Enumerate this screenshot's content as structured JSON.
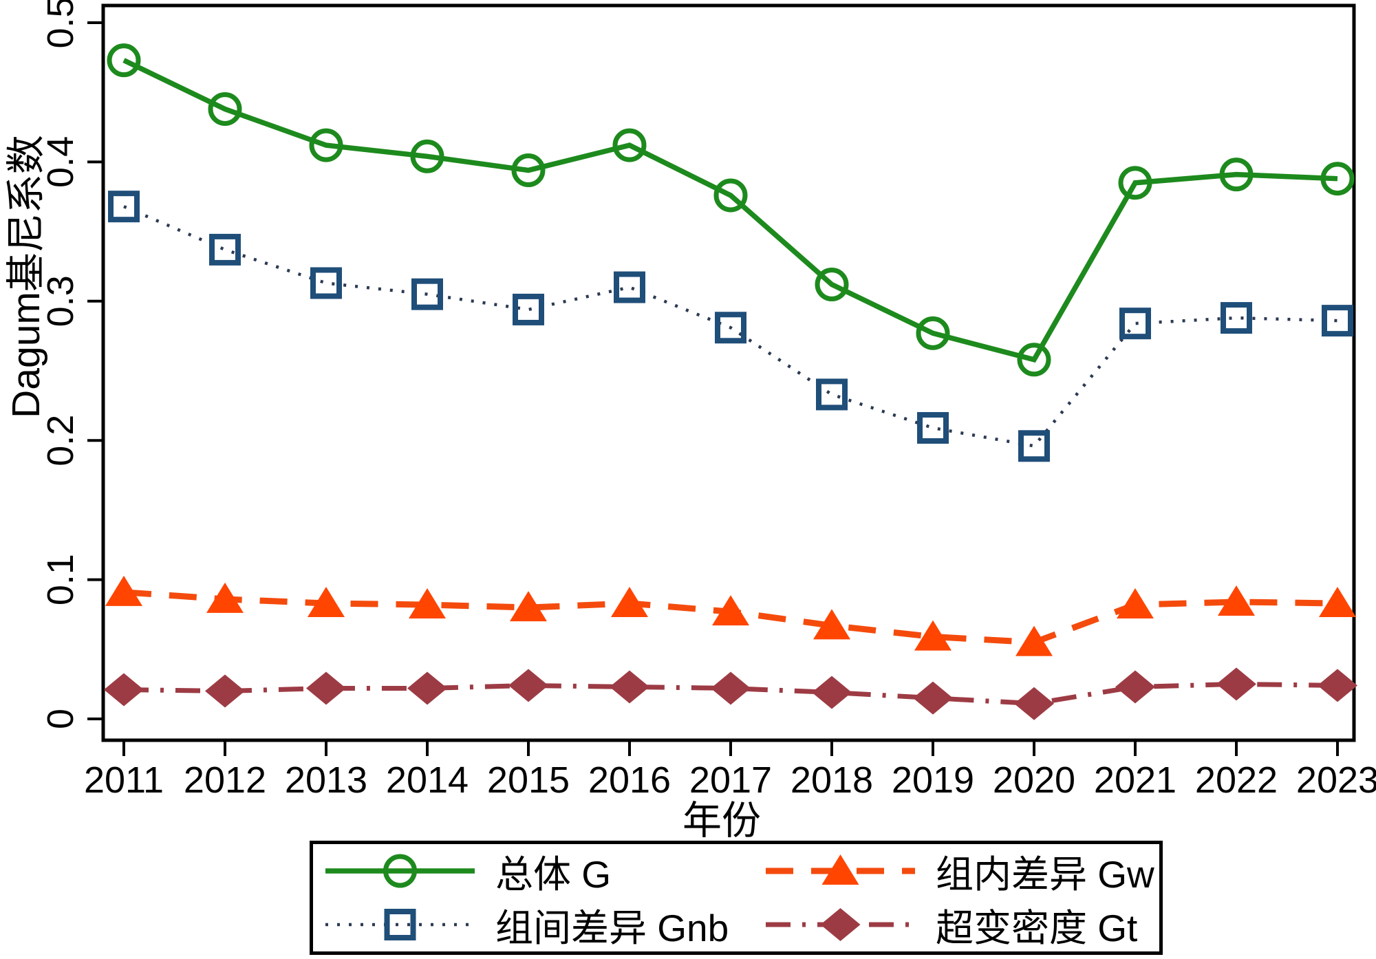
{
  "chart": {
    "y_axis_title": "Dagum基尼系数",
    "x_axis_title": "年份",
    "y_ticks": [
      {
        "value": 0.5,
        "label": "0.5"
      },
      {
        "value": 0.4,
        "label": "0.4"
      },
      {
        "value": 0.3,
        "label": "0.3"
      },
      {
        "value": 0.2,
        "label": "0.2"
      },
      {
        "value": 0.1,
        "label": "0.1"
      },
      {
        "value": 0.0,
        "label": "0"
      }
    ],
    "axis_color": "#000000",
    "background_color": "#ffffff"
  },
  "chart_data": {
    "type": "line",
    "x_labels": [
      "2011",
      "2012",
      "2013",
      "2014",
      "2015",
      "2016",
      "2017",
      "2018",
      "2019",
      "2020",
      "2021",
      "2022",
      "2023"
    ],
    "xlabel": "年份",
    "ylabel": "Dagum基尼系数",
    "ylim": [
      0,
      0.5
    ],
    "grid": false,
    "legend_position": "bottom",
    "series": [
      {
        "name": "总体 G",
        "marker": "circle",
        "line_style": "solid",
        "color": "#1d8a1d",
        "marker_color": "#1d8a1d",
        "values": [
          0.473,
          0.438,
          0.412,
          0.404,
          0.394,
          0.412,
          0.376,
          0.312,
          0.277,
          0.258,
          0.385,
          0.391,
          0.388
        ]
      },
      {
        "name": "组间差异 Gnb",
        "marker": "square",
        "line_style": "dotted",
        "color": "#2b3a52",
        "marker_color": "#1f4e79",
        "values": [
          0.368,
          0.337,
          0.313,
          0.305,
          0.294,
          0.31,
          0.281,
          0.233,
          0.209,
          0.196,
          0.284,
          0.288,
          0.286
        ]
      },
      {
        "name": "组内差异 Gw",
        "marker": "triangle",
        "line_style": "dashed",
        "color": "#f44b0d",
        "marker_color": "#ff4500",
        "values": [
          0.091,
          0.086,
          0.083,
          0.082,
          0.08,
          0.083,
          0.077,
          0.067,
          0.059,
          0.055,
          0.082,
          0.084,
          0.083
        ]
      },
      {
        "name": "超变密度 Gt",
        "marker": "diamond",
        "line_style": "dashdot",
        "color": "#9d3b44",
        "marker_color": "#9d3b44",
        "values": [
          0.021,
          0.02,
          0.022,
          0.022,
          0.024,
          0.023,
          0.022,
          0.019,
          0.015,
          0.011,
          0.023,
          0.025,
          0.024
        ]
      }
    ]
  }
}
